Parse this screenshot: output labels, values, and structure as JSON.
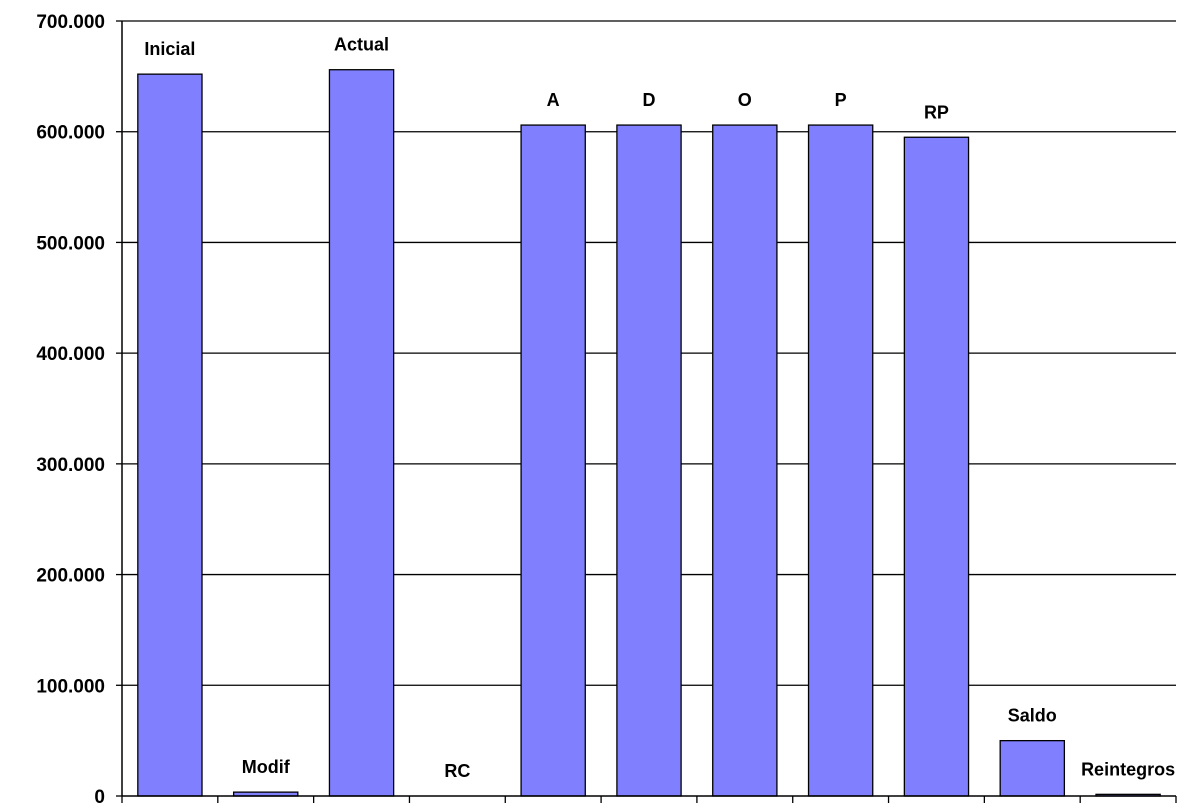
{
  "chart_data": {
    "type": "bar",
    "categories": [
      "Inicial",
      "Modif",
      "Actual",
      "RC",
      "A",
      "D",
      "O",
      "P",
      "RP",
      "Saldo",
      "Reintegros"
    ],
    "values": [
      652000,
      3500,
      656000,
      0,
      606000,
      606000,
      606000,
      606000,
      595000,
      50000,
      1500
    ],
    "title": "",
    "xlabel": "",
    "ylabel": "",
    "ylim": [
      0,
      700000
    ],
    "yticks": [
      "0",
      "100.000",
      "200.000",
      "300.000",
      "400.000",
      "500.000",
      "600.000",
      "700.000"
    ],
    "grid": true,
    "legend": "none",
    "bar_color": "#8080ff",
    "bar_stroke": "#000000"
  }
}
